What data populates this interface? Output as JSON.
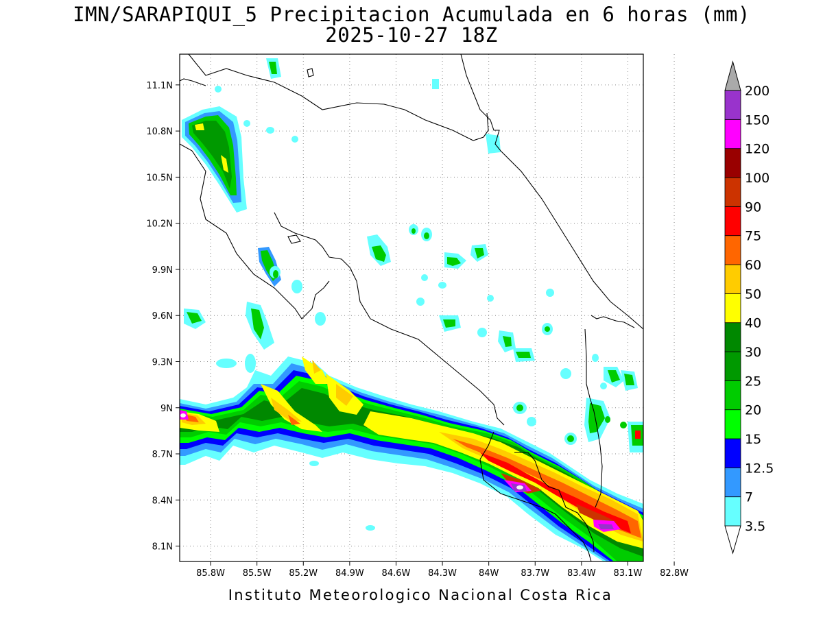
{
  "title": "IMN/SARAPIQUI_5 Precipitacion Acumulada en 6 horas (mm)",
  "subtitle": "2025-10-27 18Z",
  "credit": "Instituto Meteorologico Nacional Costa Rica",
  "map": {
    "lon_range": [
      -86.0,
      -83.0
    ],
    "lat_range": [
      8.0,
      11.3
    ],
    "lat_ticks": [
      {
        "value": 11.1,
        "label": "11.1N"
      },
      {
        "value": 10.8,
        "label": "10.8N"
      },
      {
        "value": 10.5,
        "label": "10.5N"
      },
      {
        "value": 10.2,
        "label": "10.2N"
      },
      {
        "value": 9.9,
        "label": "9.9N"
      },
      {
        "value": 9.6,
        "label": "9.6N"
      },
      {
        "value": 9.3,
        "label": "9.3N"
      },
      {
        "value": 9.0,
        "label": "9N"
      },
      {
        "value": 8.7,
        "label": "8.7N"
      },
      {
        "value": 8.4,
        "label": "8.4N"
      },
      {
        "value": 8.1,
        "label": "8.1N"
      }
    ],
    "lon_ticks": [
      {
        "value": -85.8,
        "label": "85.8W"
      },
      {
        "value": -85.5,
        "label": "85.5W"
      },
      {
        "value": -85.2,
        "label": "85.2W"
      },
      {
        "value": -84.9,
        "label": "84.9W"
      },
      {
        "value": -84.6,
        "label": "84.6W"
      },
      {
        "value": -84.3,
        "label": "84.3W"
      },
      {
        "value": -84.0,
        "label": "84W"
      },
      {
        "value": -83.7,
        "label": "83.7W"
      },
      {
        "value": -83.4,
        "label": "83.4W"
      },
      {
        "value": -83.1,
        "label": "83.1W"
      },
      {
        "value": -82.8,
        "label": "82.8W"
      }
    ],
    "grid": true
  },
  "legend": {
    "levels": [
      {
        "label": "3.5",
        "color": "#66ffff"
      },
      {
        "label": "7",
        "color": "#3399ff"
      },
      {
        "label": "12.5",
        "color": "#0000ff"
      },
      {
        "label": "15",
        "color": "#00ff00"
      },
      {
        "label": "20",
        "color": "#00cc00"
      },
      {
        "label": "25",
        "color": "#009900"
      },
      {
        "label": "30",
        "color": "#008800"
      },
      {
        "label": "40",
        "color": "#ffff00"
      },
      {
        "label": "50",
        "color": "#ffcc00"
      },
      {
        "label": "60",
        "color": "#ff6600"
      },
      {
        "label": "75",
        "color": "#ff0000"
      },
      {
        "label": "90",
        "color": "#cc3300"
      },
      {
        "label": "100",
        "color": "#990000"
      },
      {
        "label": "120",
        "color": "#ff00ff"
      },
      {
        "label": "150",
        "color": "#9933cc"
      },
      {
        "label": "200",
        "color": "#f5f5f5"
      }
    ],
    "overflow_color": "#aaaaaa"
  }
}
